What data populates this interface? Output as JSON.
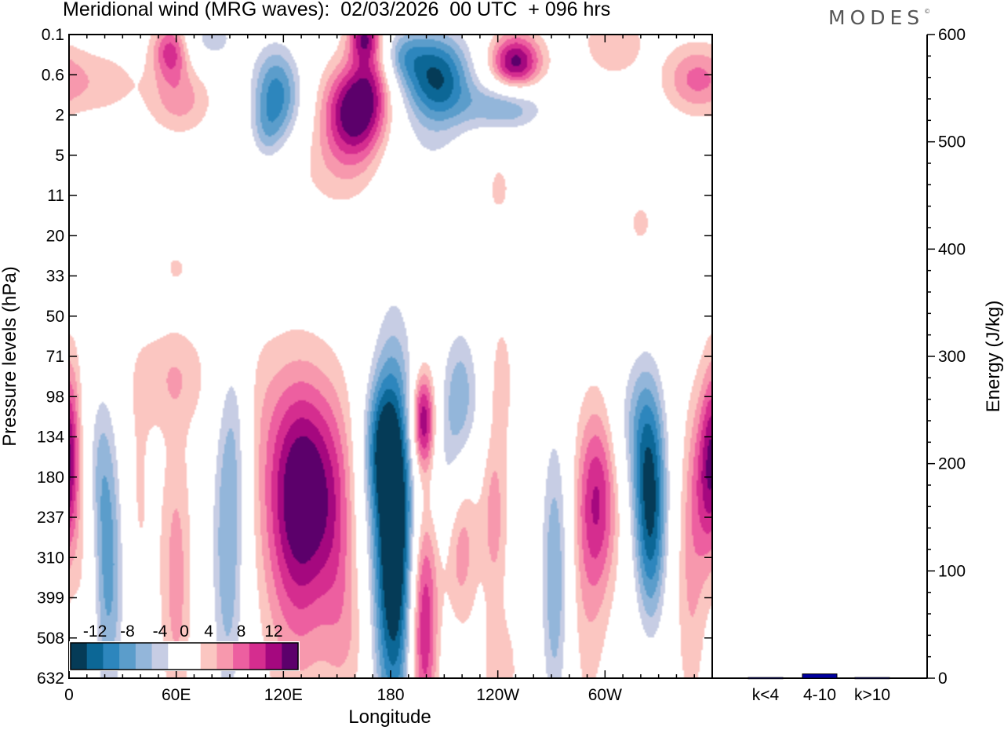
{
  "header": {
    "title": "Meridional wind (MRG waves):  02/03/2026  00 UTC  + 096 hrs",
    "brand": "MODES"
  },
  "chart_data": [
    {
      "type": "heatmap",
      "title": "Meridional wind (MRG waves)",
      "xlabel": "Longitude",
      "ylabel": "Pressure levels (hPa)",
      "x_ticks": [
        "0",
        "60E",
        "120E",
        "180",
        "120W",
        "60W"
      ],
      "x_tick_degrees": [
        0,
        60,
        120,
        180,
        240,
        300
      ],
      "xlim": [
        0,
        360
      ],
      "y_ticks": [
        "0.1",
        "0.6",
        "2",
        "5",
        "11",
        "20",
        "33",
        "50",
        "71",
        "98",
        "134",
        "180",
        "237",
        "310",
        "399",
        "508",
        "632"
      ],
      "colorbar": {
        "labels": [
          "-12",
          "-8",
          "-4",
          "0",
          "4",
          "8",
          "12"
        ],
        "label_values": [
          -12,
          -8,
          -4,
          0,
          4,
          8,
          12
        ],
        "levels": [
          -14,
          -12,
          -10,
          -8,
          -6,
          -4,
          -2,
          2,
          4,
          6,
          8,
          10,
          12,
          14
        ],
        "colors": [
          "#053b57",
          "#0c6796",
          "#2d86bd",
          "#5b9dcb",
          "#93b6da",
          "#c7cde4",
          "#ffffff",
          "#ffffff",
          "#fbc6c1",
          "#f798ad",
          "#ed5fa0",
          "#d52d8f",
          "#a5087f",
          "#5c006b"
        ]
      },
      "features": [
        {
          "lon": 22,
          "lev": 13.3,
          "value": -9,
          "wlon": 7,
          "wlev": 2.6
        },
        {
          "lon": 15,
          "lev": 10.5,
          "value": -4,
          "wlon": 6,
          "wlev": 1.5
        },
        {
          "lon": 0.5,
          "lev": 10.3,
          "value": 7,
          "wlon": 4,
          "wlev": 1.6
        },
        {
          "lon": 10,
          "lev": 12.5,
          "value": 3,
          "wlon": 5,
          "wlev": 3
        },
        {
          "lon": 38,
          "lev": 11.5,
          "value": 2.5,
          "wlon": 7,
          "wlev": 2.5
        },
        {
          "lon": 60,
          "lev": 13.5,
          "value": 5,
          "wlon": 6,
          "wlev": 2.5
        },
        {
          "lon": 58,
          "lev": 8.5,
          "value": 3.5,
          "wlon": 14,
          "wlev": 0.9
        },
        {
          "lon": 89,
          "lev": 12.6,
          "value": -8,
          "wlon": 7,
          "wlev": 3.2
        },
        {
          "lon": 94,
          "lev": 9.5,
          "value": -3,
          "wlon": 6,
          "wlev": 1.5
        },
        {
          "lon": 132,
          "lev": 11.2,
          "value": 12,
          "wlon": 15,
          "wlev": 1.9
        },
        {
          "lon": 128,
          "lev": 13.5,
          "value": 5,
          "wlon": 14,
          "wlev": 2.6
        },
        {
          "lon": 150,
          "lev": 13,
          "value": 3,
          "wlon": 7,
          "wlev": 2.5
        },
        {
          "lon": 182,
          "lev": 12.6,
          "value": -19,
          "wlon": 9,
          "wlev": 3.3
        },
        {
          "lon": 174,
          "lev": 10.2,
          "value": -7,
          "wlon": 7,
          "wlev": 1.2
        },
        {
          "lon": 198,
          "lev": 9.6,
          "value": 13,
          "wlon": 5,
          "wlev": 0.9
        },
        {
          "lon": 198,
          "lev": 14.6,
          "value": 12.5,
          "wlon": 6,
          "wlev": 2.2
        },
        {
          "lon": 219,
          "lev": 12.8,
          "value": 7,
          "wlon": 7,
          "wlev": 2
        },
        {
          "lon": 219,
          "lev": 9.1,
          "value": -8,
          "wlon": 8,
          "wlev": 1.4
        },
        {
          "lon": 212,
          "lev": 11.2,
          "value": -4,
          "wlon": 7,
          "wlev": 1.3
        },
        {
          "lon": 218,
          "lev": 15.2,
          "value": -3,
          "wlon": 10,
          "wlev": 1.7
        },
        {
          "lon": 238,
          "lev": 12,
          "value": 5,
          "wlon": 5,
          "wlev": 1.5
        },
        {
          "lon": 242,
          "lev": 8.6,
          "value": 3,
          "wlon": 5,
          "wlev": 1.2
        },
        {
          "lon": 240,
          "lev": 15.8,
          "value": 3,
          "wlon": 10,
          "wlev": 1.2
        },
        {
          "lon": 272,
          "lev": 13.5,
          "value": -8,
          "wlon": 6,
          "wlev": 2.8
        },
        {
          "lon": 296,
          "lev": 11.5,
          "value": 9,
          "wlon": 8,
          "wlev": 1.6
        },
        {
          "lon": 290,
          "lev": 14,
          "value": 3,
          "wlon": 8,
          "wlev": 2.5
        },
        {
          "lon": 325,
          "lev": 11.2,
          "value": -13,
          "wlon": 7,
          "wlev": 1.9
        },
        {
          "lon": 315,
          "lev": 9.5,
          "value": -4,
          "wlon": 9,
          "wlev": 1.3
        },
        {
          "lon": 326,
          "lev": 13.3,
          "value": -4,
          "wlon": 6,
          "wlev": 1.6
        },
        {
          "lon": 356,
          "lev": 11,
          "value": 7,
          "wlon": 6,
          "wlev": 1.6
        },
        {
          "lon": 348,
          "lev": 13.5,
          "value": 4,
          "wlon": 6,
          "wlev": 2.5
        },
        {
          "lon": 100,
          "lev": 9,
          "value": 2,
          "wlon": 16,
          "wlev": 1.5
        },
        {
          "lon": 160,
          "lev": 15,
          "value": 2.5,
          "wlon": 8,
          "wlev": 1.4
        },
        {
          "lon": 160,
          "lev": 1.9,
          "value": 14,
          "wlon": 12,
          "wlev": 0.8
        },
        {
          "lon": 170,
          "lev": 0.8,
          "value": 6,
          "wlon": 8,
          "wlev": 0.8
        },
        {
          "lon": 152,
          "lev": 3.3,
          "value": 3,
          "wlon": 18,
          "wlev": 0.8
        },
        {
          "lon": 116,
          "lev": 1.5,
          "value": -11,
          "wlon": 10,
          "wlev": 0.9
        },
        {
          "lon": 110,
          "lev": 2.5,
          "value": -3,
          "wlon": 6,
          "wlev": 0.5
        },
        {
          "lon": 206,
          "lev": 1.1,
          "value": -14,
          "wlon": 14,
          "wlev": 0.85
        },
        {
          "lon": 185,
          "lev": 0.5,
          "value": -6,
          "wlon": 10,
          "wlev": 0.5
        },
        {
          "lon": 250,
          "lev": 0.7,
          "value": 13,
          "wlon": 10,
          "wlev": 0.5
        },
        {
          "lon": 245,
          "lev": 1.8,
          "value": -8,
          "wlon": 16,
          "wlev": 0.45
        },
        {
          "lon": 200,
          "lev": 3.4,
          "value": -3,
          "wlon": 18,
          "wlev": 0.9
        },
        {
          "lon": 57,
          "lev": 0.4,
          "value": 9,
          "wlon": 7,
          "wlev": 0.5
        },
        {
          "lon": 62,
          "lev": 1.6,
          "value": 5,
          "wlon": 12,
          "wlev": 0.6
        },
        {
          "lon": 18,
          "lev": 1.2,
          "value": 3,
          "wlon": 16,
          "wlev": 0.6
        },
        {
          "lon": 80,
          "lev": 0.1,
          "value": -5,
          "wlon": 12,
          "wlev": 0.5
        },
        {
          "lon": 165,
          "lev": 0.05,
          "value": 9,
          "wlon": 6,
          "wlev": 0.4
        },
        {
          "lon": 305,
          "lev": 0.2,
          "value": 4,
          "wlon": 12,
          "wlev": 0.6
        },
        {
          "lon": 350,
          "lev": 1.1,
          "value": 6,
          "wlon": 12,
          "wlev": 0.6
        },
        {
          "lon": 340,
          "lev": 3.2,
          "value": -3,
          "wlon": 6,
          "wlev": 0.5
        },
        {
          "lon": 240,
          "lev": 3.8,
          "value": 2.5,
          "wlon": 8,
          "wlev": 0.8
        },
        {
          "lon": 185,
          "lev": 5,
          "value": 2.5,
          "wlon": 8,
          "wlev": 0.5
        },
        {
          "lon": 270,
          "lev": 5,
          "value": -2.5,
          "wlon": 6,
          "wlev": 0.4
        },
        {
          "lon": 320,
          "lev": 4.7,
          "value": 2.5,
          "wlon": 6,
          "wlev": 0.5
        },
        {
          "lon": 60,
          "lev": 5.8,
          "value": 2.4,
          "wlon": 5,
          "wlev": 0.3
        },
        {
          "lon": 145,
          "lev": 6.2,
          "value": -2.5,
          "wlon": 7,
          "wlev": 0.3
        }
      ]
    },
    {
      "type": "bar",
      "ylabel": "Energy (J/kg)",
      "categories": [
        "k<4",
        "4-10",
        "k>10"
      ],
      "values": [
        0.6,
        4,
        0.6
      ],
      "ylim": [
        0,
        600
      ],
      "y_ticks": [
        0,
        100,
        200,
        300,
        400,
        500,
        600
      ],
      "bar_color": "#0000a0"
    }
  ]
}
